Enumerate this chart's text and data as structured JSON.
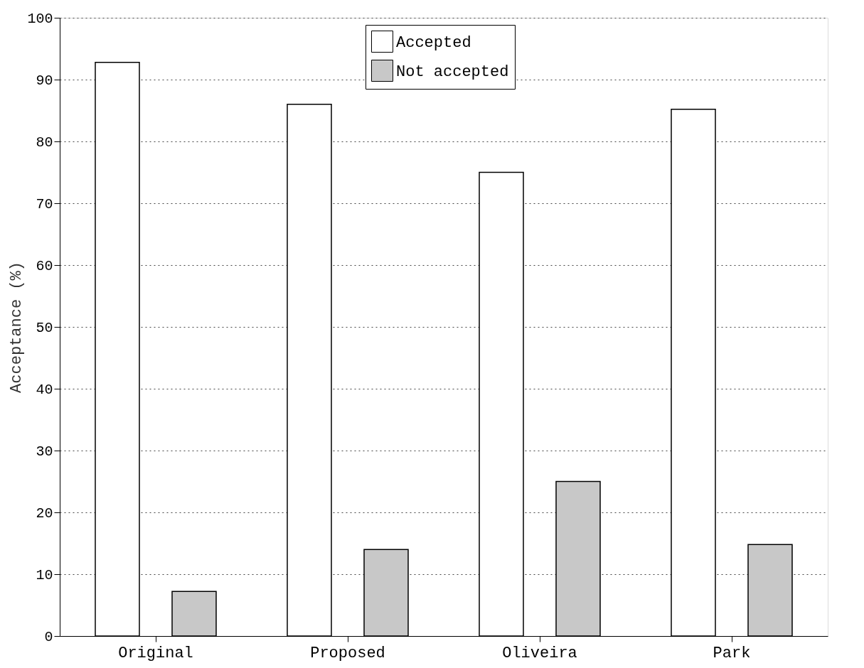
{
  "chart_data": {
    "type": "bar",
    "ylabel": "Acceptance (%)",
    "categories": [
      "Original",
      "Proposed",
      "Oliveira",
      "Park"
    ],
    "series": [
      {
        "name": "Accepted",
        "color": "#ffffff",
        "values": [
          92.8,
          86,
          75,
          85.2
        ]
      },
      {
        "name": "Not accepted",
        "color": "#c8c8c8",
        "values": [
          7.2,
          14,
          25,
          14.8
        ]
      }
    ],
    "ylim": [
      0,
      100
    ],
    "yticks": [
      0,
      10,
      20,
      30,
      40,
      50,
      60,
      70,
      80,
      90,
      100
    ],
    "grid": "y",
    "legend": "top"
  }
}
